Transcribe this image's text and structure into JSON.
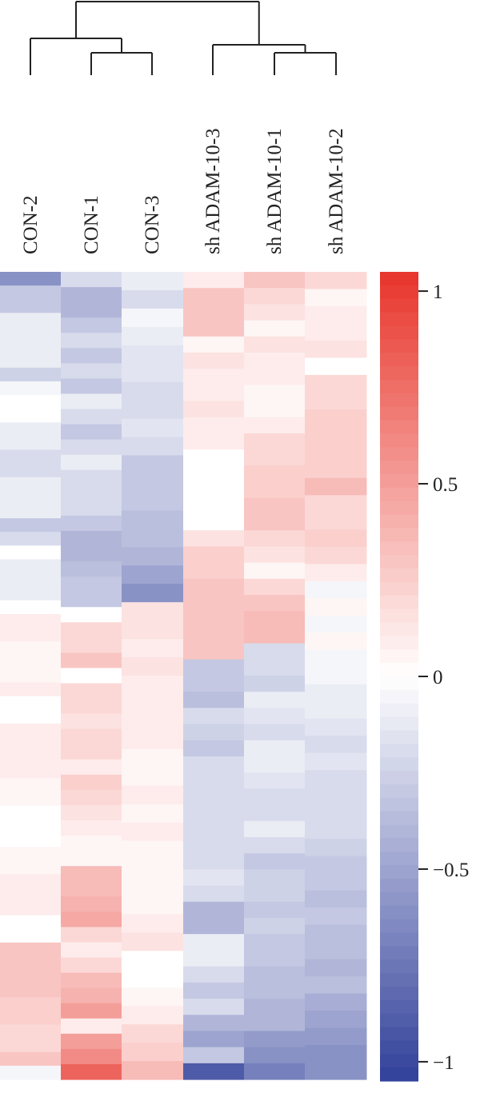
{
  "chart_data": {
    "type": "heatmap",
    "columns": [
      "CON-2",
      "CON-1",
      "CON-3",
      "sh ADAM-10-3",
      "sh ADAM-10-1",
      "sh ADAM-10-2"
    ],
    "values_by_column": {
      "CON-2": [
        -0.6,
        -0.3,
        -0.3,
        -0.1,
        -0.1,
        -0.1,
        -0.1,
        -0.25,
        -0.05,
        0,
        0,
        -0.1,
        -0.1,
        -0.2,
        -0.2,
        -0.1,
        -0.1,
        -0.1,
        -0.3,
        -0.2,
        0,
        -0.1,
        -0.1,
        -0.1,
        0,
        0.1,
        0.1,
        0.05,
        0.05,
        0.05,
        0.1,
        0,
        0,
        0.1,
        0.1,
        0.1,
        0.1,
        0.05,
        0.05,
        0,
        0,
        0,
        0.05,
        0.05,
        0.1,
        0.1,
        0.1,
        0,
        0,
        0.3,
        0.3,
        0.3,
        0.3,
        0.25,
        0.25,
        0.2,
        0.2,
        0.3,
        -0.05
      ],
      "CON-1": [
        -0.2,
        -0.4,
        -0.4,
        -0.3,
        -0.2,
        -0.3,
        -0.2,
        -0.3,
        -0.1,
        -0.2,
        -0.3,
        -0.2,
        -0.1,
        -0.2,
        -0.2,
        -0.2,
        -0.3,
        -0.4,
        -0.4,
        -0.35,
        -0.3,
        -0.3,
        0,
        0.2,
        0.2,
        0.3,
        0,
        0.2,
        0.2,
        0.15,
        0.2,
        0.2,
        0.1,
        0.25,
        0.2,
        0.15,
        0.1,
        0.05,
        0.05,
        0.35,
        0.35,
        0.4,
        0.45,
        0.2,
        0.1,
        0.2,
        0.35,
        0.4,
        0.5,
        0.1,
        0.5,
        0.6,
        0.8
      ],
      "CON-3": [
        -0.1,
        -0.2,
        -0.05,
        -0.1,
        -0.15,
        -0.15,
        -0.2,
        -0.2,
        -0.15,
        -0.2,
        -0.3,
        -0.3,
        -0.3,
        -0.35,
        -0.35,
        -0.4,
        -0.5,
        -0.6,
        0.15,
        0.15,
        0.1,
        0.15,
        0.1,
        0.1,
        0.1,
        0.1,
        0.05,
        0.05,
        0.1,
        0.05,
        0.1,
        0.05,
        0.05,
        0.05,
        0.05,
        0.1,
        0.15,
        0,
        0,
        0.05,
        0.1,
        0.2,
        0.25,
        0.35
      ],
      "sh ADAM-10-3": [
        0.1,
        0.3,
        0.3,
        0.3,
        0.05,
        0.15,
        0.1,
        0.1,
        0.15,
        0.1,
        0.1,
        0,
        0,
        0,
        0,
        0,
        0.15,
        0.25,
        0.25,
        0.3,
        0.3,
        0.3,
        0.3,
        0.3,
        -0.3,
        -0.3,
        -0.35,
        -0.2,
        -0.25,
        -0.3,
        -0.2,
        -0.2,
        -0.2,
        -0.2,
        -0.2,
        -0.2,
        -0.2,
        -0.15,
        -0.2,
        -0.4,
        -0.4,
        -0.1,
        -0.1,
        -0.2,
        -0.3,
        -0.2,
        -0.4,
        -0.5,
        -0.3,
        -0.9
      ],
      "sh ADAM-10-1": [
        0.3,
        0.2,
        0.15,
        0.05,
        0.15,
        0.1,
        0.1,
        0.05,
        0.05,
        0.1,
        0.2,
        0.2,
        0.25,
        0.25,
        0.3,
        0.3,
        0.2,
        0.15,
        0.05,
        0.2,
        0.3,
        0.35,
        0.35,
        -0.2,
        -0.2,
        -0.25,
        -0.1,
        -0.15,
        -0.2,
        -0.1,
        -0.1,
        -0.15,
        -0.2,
        -0.2,
        -0.1,
        -0.2,
        -0.3,
        -0.25,
        -0.25,
        -0.3,
        -0.25,
        -0.3,
        -0.3,
        -0.35,
        -0.35,
        -0.4,
        -0.4,
        -0.55,
        -0.6,
        -0.7
      ],
      "sh ADAM-10-2": [
        0.2,
        0.05,
        0.1,
        0.1,
        0.15,
        0,
        0.2,
        0.2,
        0.25,
        0.25,
        0.25,
        0.25,
        0.35,
        0.2,
        0.2,
        0.25,
        0.2,
        0.1,
        -0.05,
        0.05,
        -0.05,
        0.05,
        -0.05,
        -0.05,
        -0.1,
        -0.1,
        -0.15,
        -0.2,
        -0.15,
        -0.2,
        -0.2,
        -0.2,
        -0.2,
        -0.25,
        -0.3,
        -0.3,
        -0.35,
        -0.3,
        -0.35,
        -0.35,
        -0.4,
        -0.35,
        -0.45,
        -0.5,
        -0.55,
        -0.6,
        -0.6
      ]
    },
    "color_scale": {
      "min": -1.05,
      "max": 1.05,
      "low_color": "#31409a",
      "mid_color": "#ffffff",
      "high_color": "#e8342a",
      "ticks": [
        1,
        0.5,
        0,
        -0.5,
        -1
      ],
      "tick_labels": [
        "1",
        "0.5",
        "0",
        "−0.5",
        "−1"
      ]
    },
    "dendrogram": "columns clustered: (CON-2, (CON-1, CON-3)) and (sh ADAM-10-3, (sh ADAM-10-1, sh ADAM-10-2))"
  }
}
